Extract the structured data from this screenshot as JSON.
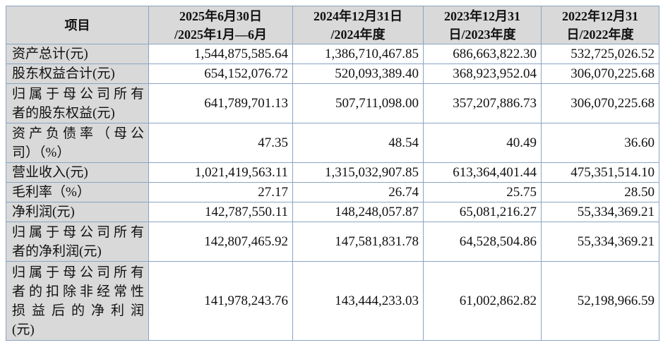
{
  "table": {
    "headers": [
      [
        "项目"
      ],
      [
        "2025年6月30日",
        "/2025年1月—6月"
      ],
      [
        "2024年12月31日",
        "/2024年度"
      ],
      [
        "2023年12月31",
        "日/2023年度"
      ],
      [
        "2022年12月31",
        "日/2022年度"
      ]
    ],
    "rows": [
      {
        "label": [
          "资产总计(元)"
        ],
        "values": [
          "1,544,875,585.64",
          "1,386,710,467.85",
          "686,663,822.30",
          "532,725,026.52"
        ]
      },
      {
        "label": [
          "股东权益合计(元)"
        ],
        "values": [
          "654,152,076.72",
          "520,093,389.40",
          "368,923,952.04",
          "306,070,225.68"
        ]
      },
      {
        "label": [
          "归属于母公司所有",
          "者的股东权益(元)"
        ],
        "values": [
          "641,789,701.13",
          "507,711,098.00",
          "357,207,886.73",
          "306,070,225.68"
        ]
      },
      {
        "label": [
          "资产负债率（母公",
          "司）（%）"
        ],
        "values": [
          "47.35",
          "48.54",
          "40.49",
          "36.60"
        ]
      },
      {
        "label": [
          "营业收入(元)"
        ],
        "values": [
          "1,021,419,563.11",
          "1,315,032,907.85",
          "613,364,401.44",
          "475,351,514.10"
        ]
      },
      {
        "label": [
          "毛利率（%）"
        ],
        "values": [
          "27.17",
          "26.74",
          "25.75",
          "28.50"
        ]
      },
      {
        "label": [
          "净利润(元)"
        ],
        "values": [
          "142,787,550.11",
          "148,248,057.87",
          "65,081,216.27",
          "55,334,369.21"
        ]
      },
      {
        "label": [
          "归属于母公司所有",
          "者的净利润(元)"
        ],
        "values": [
          "142,807,465.92",
          "147,581,831.78",
          "64,528,504.86",
          "55,334,369.21"
        ]
      },
      {
        "label": [
          "归属于母公司所有",
          "者的扣除非经常性",
          "损益后的净利润",
          "(元)"
        ],
        "values": [
          "141,978,243.76",
          "143,444,233.03",
          "61,002,862.82",
          "52,198,966.59"
        ]
      }
    ]
  }
}
